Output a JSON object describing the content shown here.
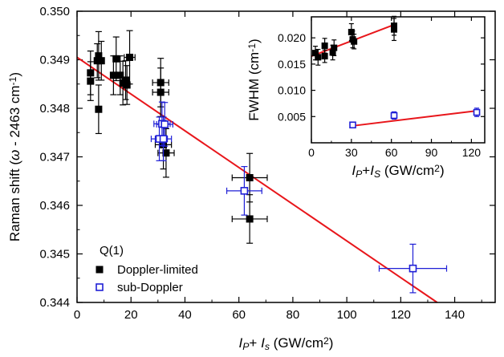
{
  "chart_data": [
    {
      "type": "scatter",
      "panel": "main",
      "xlabel_parts": [
        {
          "text": "I",
          "italic": true
        },
        {
          "text": "P",
          "sub": true,
          "italic": true
        },
        {
          "text": "+ "
        },
        {
          "text": "I",
          "italic": true
        },
        {
          "text": "s",
          "sub": true,
          "italic": true
        },
        {
          "text": " (GW/cm"
        },
        {
          "text": "2",
          "sup": true
        },
        {
          "text": ")"
        }
      ],
      "ylabel_parts": [
        {
          "text": "Raman shift ("
        },
        {
          "text": "ω",
          "italic": true
        },
        {
          "text": " - 2463 cm"
        },
        {
          "text": "-1",
          "sup": true
        },
        {
          "text": ")"
        }
      ],
      "xlim": [
        0,
        155
      ],
      "ylim": [
        0.344,
        0.35
      ],
      "xticks": [
        0,
        20,
        40,
        60,
        80,
        100,
        120,
        140
      ],
      "yticks": [
        0.344,
        0.345,
        0.346,
        0.347,
        0.348,
        0.349,
        0.35
      ],
      "xtick_labels": [
        "0",
        "20",
        "40",
        "60",
        "80",
        "100",
        "120",
        "140"
      ],
      "ytick_labels": [
        "0.344",
        "0.345",
        "0.346",
        "0.347",
        "0.348",
        "0.349",
        "0.350"
      ],
      "legend": {
        "title": "Q(1)",
        "position": "bottom-left",
        "entries": [
          "Doppler-limited",
          "sub-Doppler"
        ]
      },
      "series": [
        {
          "name": "Doppler-limited",
          "marker": "filled-square",
          "color": "#000000",
          "points": [
            {
              "x": 5,
              "y": 0.34873,
              "xerr": 0,
              "yerr": 0.00045
            },
            {
              "x": 5,
              "y": 0.34856,
              "xerr": 0,
              "yerr": 0.0004
            },
            {
              "x": 7.5,
              "y": 0.34898,
              "xerr": 0,
              "yerr": 0.00035
            },
            {
              "x": 8,
              "y": 0.34908,
              "xerr": 0,
              "yerr": 0.0005
            },
            {
              "x": 8,
              "y": 0.34798,
              "xerr": 0,
              "yerr": 0.0005
            },
            {
              "x": 9,
              "y": 0.34898,
              "xerr": 0,
              "yerr": 0.0004
            },
            {
              "x": 13.5,
              "y": 0.34868,
              "xerr": 0,
              "yerr": 0.0004
            },
            {
              "x": 14.5,
              "y": 0.34902,
              "xerr": 0,
              "yerr": 0.00045
            },
            {
              "x": 16,
              "y": 0.34868,
              "xerr": 0,
              "yerr": 0.0004
            },
            {
              "x": 17,
              "y": 0.34852,
              "xerr": 0,
              "yerr": 0.00045
            },
            {
              "x": 18,
              "y": 0.34858,
              "xerr": 0,
              "yerr": 0.0004
            },
            {
              "x": 18.5,
              "y": 0.34848,
              "xerr": 0,
              "yerr": 0.0004
            },
            {
              "x": 19.5,
              "y": 0.34905,
              "xerr": 2,
              "yerr": 0.00055
            },
            {
              "x": 31,
              "y": 0.34853,
              "xerr": 3,
              "yerr": 0.0005
            },
            {
              "x": 31,
              "y": 0.34833,
              "xerr": 3,
              "yerr": 0.0005
            },
            {
              "x": 32,
              "y": 0.34725,
              "xerr": 3,
              "yerr": 0.0005
            },
            {
              "x": 33,
              "y": 0.34708,
              "xerr": 3,
              "yerr": 0.0005
            },
            {
              "x": 64,
              "y": 0.34657,
              "xerr": 6.5,
              "yerr": 0.0005
            },
            {
              "x": 64,
              "y": 0.34572,
              "xerr": 6.5,
              "yerr": 0.0005
            }
          ]
        },
        {
          "name": "sub-Doppler",
          "marker": "open-square",
          "color": "#1f1fd6",
          "points": [
            {
              "x": 30.5,
              "y": 0.34737,
              "xerr": 3,
              "yerr": 0.00045
            },
            {
              "x": 31.5,
              "y": 0.34768,
              "xerr": 3,
              "yerr": 0.00045
            },
            {
              "x": 32.5,
              "y": 0.34767,
              "xerr": 3,
              "yerr": 0.00045
            },
            {
              "x": 32,
              "y": 0.34737,
              "xerr": 3,
              "yerr": 0.00045
            },
            {
              "x": 62,
              "y": 0.3463,
              "xerr": 6.5,
              "yerr": 0.0005
            },
            {
              "x": 124.5,
              "y": 0.3447,
              "xerr": 12.5,
              "yerr": 0.0005
            }
          ]
        }
      ],
      "fit_line": {
        "color": "#e8161b",
        "x": [
          0,
          133.5
        ],
        "y": [
          0.34905,
          0.344
        ]
      }
    },
    {
      "type": "scatter",
      "panel": "inset",
      "xlabel_parts": [
        {
          "text": "I",
          "italic": true
        },
        {
          "text": "P",
          "sub": true,
          "italic": true
        },
        {
          "text": "+"
        },
        {
          "text": "I",
          "italic": true
        },
        {
          "text": "S",
          "sub": true,
          "italic": true
        },
        {
          "text": " (GW/cm"
        },
        {
          "text": "2",
          "sup": true
        },
        {
          "text": ")"
        }
      ],
      "ylabel_parts": [
        {
          "text": "FWHM (cm"
        },
        {
          "text": "-1",
          "sup": true
        },
        {
          "text": ")"
        }
      ],
      "xlim": [
        0,
        130
      ],
      "ylim": [
        0,
        0.024
      ],
      "xticks": [
        0,
        30,
        60,
        90,
        120
      ],
      "yticks": [
        0.005,
        0.01,
        0.015,
        0.02
      ],
      "xtick_labels": [
        "0",
        "30",
        "60",
        "90",
        "120"
      ],
      "ytick_labels": [
        "0.005",
        "0.010",
        "0.015",
        "0.020"
      ],
      "series": [
        {
          "name": "Doppler-limited",
          "marker": "filled-square",
          "color": "#000000",
          "points": [
            {
              "x": 3,
              "y": 0.0171,
              "yerr": 0.0013
            },
            {
              "x": 5,
              "y": 0.0163,
              "yerr": 0.0015
            },
            {
              "x": 10,
              "y": 0.0185,
              "yerr": 0.0014
            },
            {
              "x": 10,
              "y": 0.0165,
              "yerr": 0.0012
            },
            {
              "x": 16,
              "y": 0.0172,
              "yerr": 0.0014
            },
            {
              "x": 17,
              "y": 0.0181,
              "yerr": 0.0015
            },
            {
              "x": 30,
              "y": 0.0211,
              "yerr": 0.0016
            },
            {
              "x": 31,
              "y": 0.0197,
              "yerr": 0.0016
            },
            {
              "x": 32,
              "y": 0.0193,
              "yerr": 0.0014
            },
            {
              "x": 62,
              "y": 0.0216,
              "yerr": 0.0021
            },
            {
              "x": 62,
              "y": 0.0223,
              "yerr": 0.0018
            }
          ]
        },
        {
          "name": "sub-Doppler",
          "marker": "open-square",
          "color": "#1f1fd6",
          "points": [
            {
              "x": 31,
              "y": 0.0034,
              "yerr": 0.0004
            },
            {
              "x": 62,
              "y": 0.0052,
              "yerr": 0.0007
            },
            {
              "x": 124,
              "y": 0.0058,
              "yerr": 0.0008
            }
          ]
        }
      ],
      "fit_lines": [
        {
          "color": "#e8161b",
          "x": [
            0,
            62
          ],
          "y": [
            0.0165,
            0.0225
          ]
        },
        {
          "color": "#e8161b",
          "x": [
            30,
            124
          ],
          "y": [
            0.0032,
            0.0061
          ]
        }
      ]
    }
  ]
}
